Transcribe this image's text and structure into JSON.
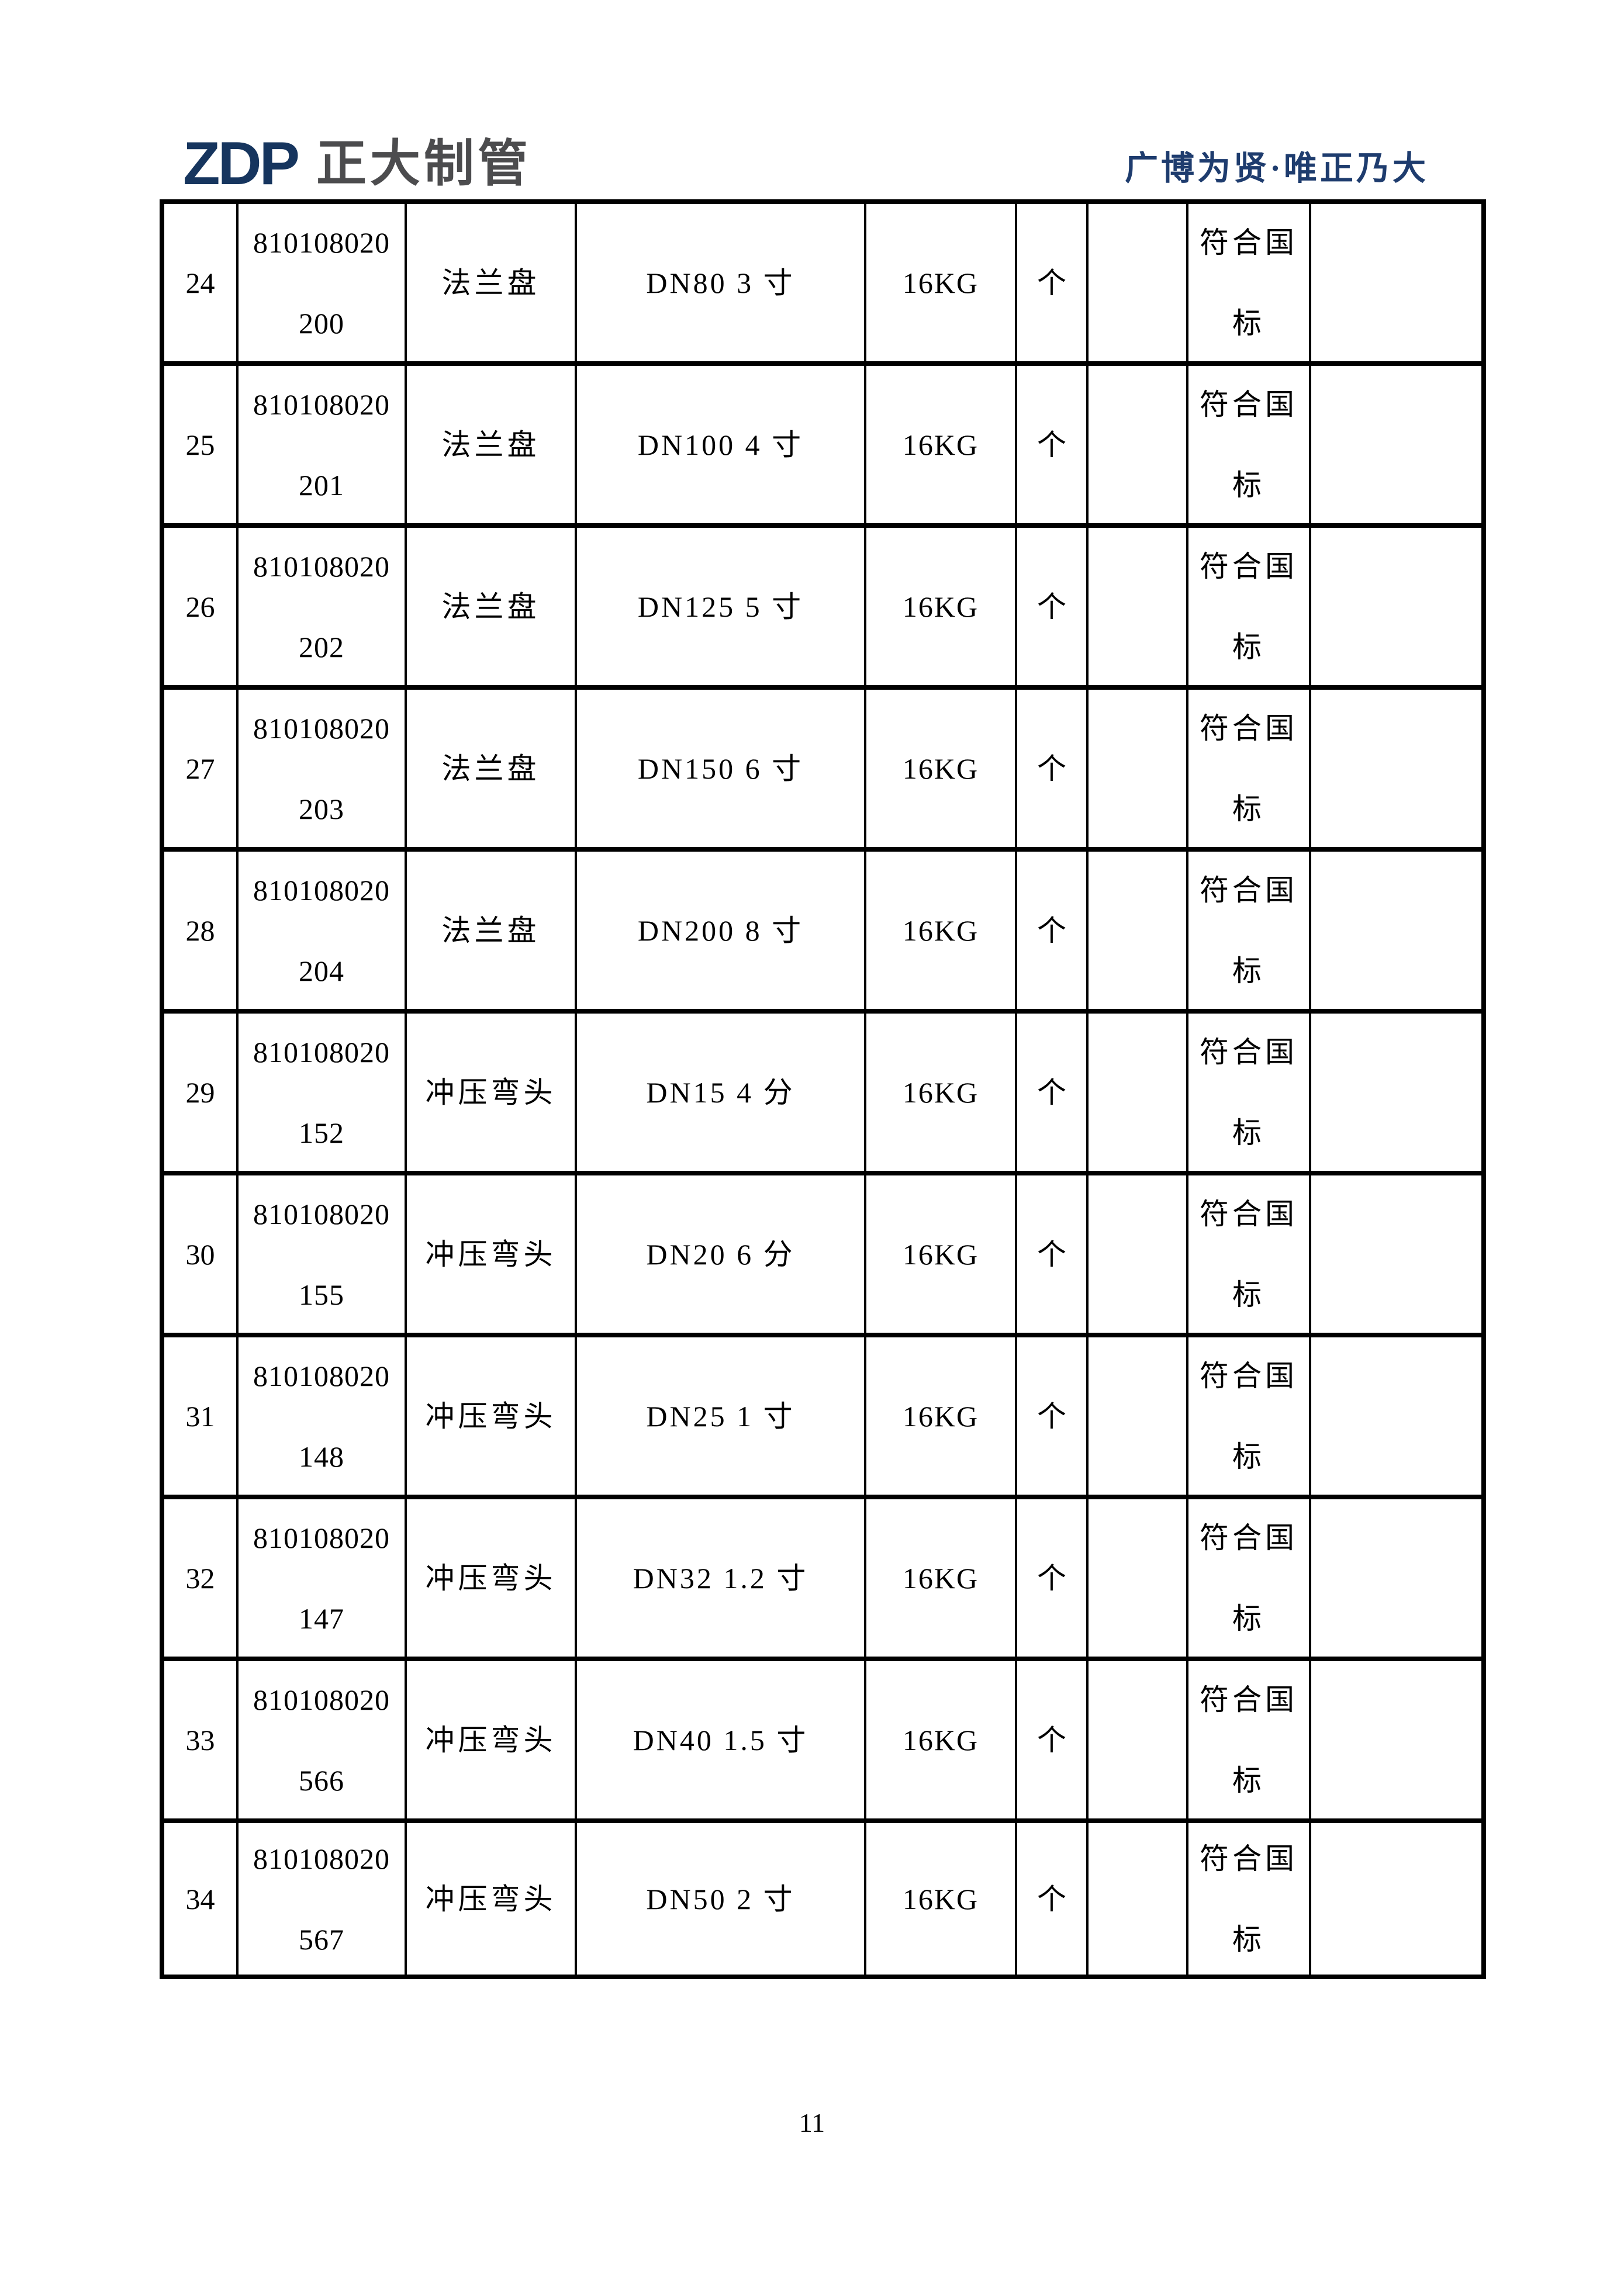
{
  "header": {
    "logo_text": "ZDP",
    "logo_company": "正大制管",
    "slogan": "广博为贤·唯正乃大"
  },
  "colors": {
    "logo_navy": "#16355e",
    "logo_gray": "#4c4c4e",
    "slogan_navy": "#1e3c6e",
    "border_black": "#000000"
  },
  "table": {
    "rows": [
      {
        "no": "24",
        "code_line1": "810108020",
        "code_line2": "200",
        "name": "法兰盘",
        "spec": "DN80 3 寸",
        "pressure": "16KG",
        "unit": "个",
        "blank1": "",
        "remark_line1": "符合国",
        "remark_line2": "标",
        "blank2": ""
      },
      {
        "no": "25",
        "code_line1": "810108020",
        "code_line2": "201",
        "name": "法兰盘",
        "spec": "DN100 4 寸",
        "pressure": "16KG",
        "unit": "个",
        "blank1": "",
        "remark_line1": "符合国",
        "remark_line2": "标",
        "blank2": ""
      },
      {
        "no": "26",
        "code_line1": "810108020",
        "code_line2": "202",
        "name": "法兰盘",
        "spec": "DN125 5 寸",
        "pressure": "16KG",
        "unit": "个",
        "blank1": "",
        "remark_line1": "符合国",
        "remark_line2": "标",
        "blank2": ""
      },
      {
        "no": "27",
        "code_line1": "810108020",
        "code_line2": "203",
        "name": "法兰盘",
        "spec": "DN150 6 寸",
        "pressure": "16KG",
        "unit": "个",
        "blank1": "",
        "remark_line1": "符合国",
        "remark_line2": "标",
        "blank2": ""
      },
      {
        "no": "28",
        "code_line1": "810108020",
        "code_line2": "204",
        "name": "法兰盘",
        "spec": "DN200 8 寸",
        "pressure": "16KG",
        "unit": "个",
        "blank1": "",
        "remark_line1": "符合国",
        "remark_line2": "标",
        "blank2": ""
      },
      {
        "no": "29",
        "code_line1": "810108020",
        "code_line2": "152",
        "name": "冲压弯头",
        "spec": "DN15 4 分",
        "pressure": "16KG",
        "unit": "个",
        "blank1": "",
        "remark_line1": "符合国",
        "remark_line2": "标",
        "blank2": ""
      },
      {
        "no": "30",
        "code_line1": "810108020",
        "code_line2": "155",
        "name": "冲压弯头",
        "spec": "DN20 6 分",
        "pressure": "16KG",
        "unit": "个",
        "blank1": "",
        "remark_line1": "符合国",
        "remark_line2": "标",
        "blank2": ""
      },
      {
        "no": "31",
        "code_line1": "810108020",
        "code_line2": "148",
        "name": "冲压弯头",
        "spec": "DN25 1 寸",
        "pressure": "16KG",
        "unit": "个",
        "blank1": "",
        "remark_line1": "符合国",
        "remark_line2": "标",
        "blank2": ""
      },
      {
        "no": "32",
        "code_line1": "810108020",
        "code_line2": "147",
        "name": "冲压弯头",
        "spec": "DN32 1.2 寸",
        "pressure": "16KG",
        "unit": "个",
        "blank1": "",
        "remark_line1": "符合国",
        "remark_line2": "标",
        "blank2": ""
      },
      {
        "no": "33",
        "code_line1": "810108020",
        "code_line2": "566",
        "name": "冲压弯头",
        "spec": "DN40 1.5 寸",
        "pressure": "16KG",
        "unit": "个",
        "blank1": "",
        "remark_line1": "符合国",
        "remark_line2": "标",
        "blank2": ""
      },
      {
        "no": "34",
        "code_line1": "810108020",
        "code_line2": "567",
        "name": "冲压弯头",
        "spec": "DN50 2 寸",
        "pressure": "16KG",
        "unit": "个",
        "blank1": "",
        "remark_line1": "符合国",
        "remark_line2": "标",
        "blank2": ""
      }
    ]
  },
  "footer": {
    "page_number": "11"
  }
}
